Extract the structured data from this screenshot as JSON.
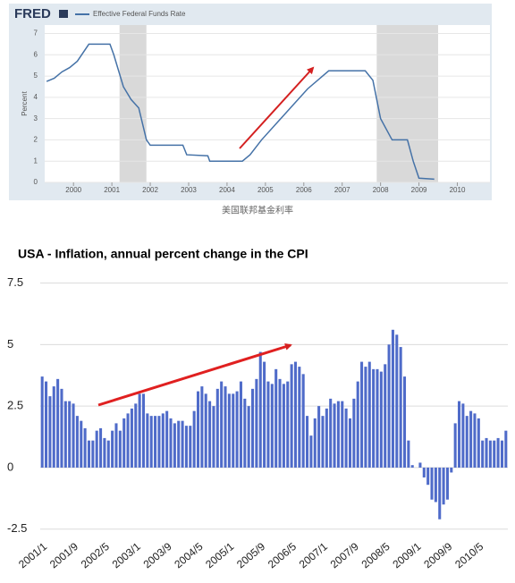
{
  "chart_data": [
    {
      "type": "line",
      "logo": "FRED",
      "legend": "Effective Federal Funds Rate",
      "y_label": "Percent",
      "caption": "美国联邦基金利率",
      "x": [
        1999.3,
        1999.5,
        1999.7,
        1999.9,
        2000.1,
        2000.4,
        2000.95,
        2001.05,
        2001.3,
        2001.5,
        2001.7,
        2001.9,
        2002.0,
        2002.85,
        2002.95,
        2003.5,
        2003.55,
        2004.4,
        2004.6,
        2004.9,
        2005.3,
        2005.7,
        2006.1,
        2006.65,
        2007.6,
        2007.8,
        2008.0,
        2008.3,
        2008.7,
        2008.85,
        2009.0,
        2009.4
      ],
      "series": [
        {
          "name": "Effective Federal Funds Rate",
          "color": "#4572a7",
          "values": [
            4.75,
            4.9,
            5.2,
            5.4,
            5.7,
            6.5,
            6.5,
            6.0,
            4.5,
            3.9,
            3.5,
            2.0,
            1.75,
            1.75,
            1.3,
            1.25,
            1.0,
            1.0,
            1.3,
            2.0,
            2.8,
            3.6,
            4.4,
            5.25,
            5.25,
            4.8,
            3.0,
            2.0,
            2.0,
            1.0,
            0.2,
            0.15
          ]
        }
      ],
      "shaded_ranges": [
        [
          2001.2,
          2001.9
        ],
        [
          2007.9,
          2009.5
        ]
      ],
      "xlim": [
        1999.25,
        2010.85
      ],
      "xticks": [
        2000,
        2001,
        2002,
        2003,
        2004,
        2005,
        2006,
        2007,
        2008,
        2009,
        2010
      ],
      "ylim": [
        0,
        7.4
      ],
      "yticks": [
        0,
        1,
        2,
        3,
        4,
        5,
        6,
        7
      ],
      "grid": true
    },
    {
      "type": "bar",
      "title": "USA - Inflation, annual percent change in the CPI",
      "categories": [
        "2001/1",
        null,
        null,
        null,
        null,
        null,
        null,
        null,
        "2001/9",
        null,
        null,
        null,
        null,
        null,
        null,
        null,
        "2002/5",
        null,
        null,
        null,
        null,
        null,
        null,
        null,
        "2003/1",
        null,
        null,
        null,
        null,
        null,
        null,
        null,
        "2003/9",
        null,
        null,
        null,
        null,
        null,
        null,
        null,
        "2004/5",
        null,
        null,
        null,
        null,
        null,
        null,
        null,
        "2005/1",
        null,
        null,
        null,
        null,
        null,
        null,
        null,
        "2005/9",
        null,
        null,
        null,
        null,
        null,
        null,
        null,
        "2006/5",
        null,
        null,
        null,
        null,
        null,
        null,
        null,
        "2007/1",
        null,
        null,
        null,
        null,
        null,
        null,
        null,
        "2007/9",
        null,
        null,
        null,
        null,
        null,
        null,
        null,
        "2008/5",
        null,
        null,
        null,
        null,
        null,
        null,
        null,
        "2009/1",
        null,
        null,
        null,
        null,
        null,
        null,
        null,
        "2009/9",
        null,
        null,
        null,
        null,
        null,
        null,
        null,
        "2010/5",
        null,
        null,
        null,
        null,
        null,
        null,
        null
      ],
      "values": [
        3.7,
        3.5,
        2.9,
        3.3,
        3.6,
        3.2,
        2.7,
        2.7,
        2.6,
        2.1,
        1.9,
        1.6,
        1.1,
        1.1,
        1.5,
        1.6,
        1.2,
        1.1,
        1.5,
        1.8,
        1.5,
        2.0,
        2.2,
        2.4,
        2.6,
        3.0,
        3.0,
        2.2,
        2.1,
        2.1,
        2.1,
        2.2,
        2.3,
        2.0,
        1.8,
        1.9,
        1.9,
        1.7,
        1.7,
        2.3,
        3.1,
        3.3,
        3.0,
        2.7,
        2.5,
        3.2,
        3.5,
        3.3,
        3.0,
        3.0,
        3.1,
        3.5,
        2.8,
        2.5,
        3.2,
        3.6,
        4.7,
        4.3,
        3.5,
        3.4,
        4.0,
        3.6,
        3.4,
        3.5,
        4.2,
        4.3,
        4.1,
        3.8,
        2.1,
        1.3,
        2.0,
        2.5,
        2.1,
        2.4,
        2.8,
        2.6,
        2.7,
        2.7,
        2.4,
        2.0,
        2.8,
        3.5,
        4.3,
        4.1,
        4.3,
        4.0,
        4.0,
        3.9,
        4.2,
        5.0,
        5.6,
        5.4,
        4.9,
        3.7,
        1.1,
        0.1,
        0.0,
        0.2,
        -0.4,
        -0.7,
        -1.3,
        -1.4,
        -2.1,
        -1.5,
        -1.3,
        -0.2,
        1.8,
        2.7,
        2.6,
        2.1,
        2.3,
        2.2,
        2.0,
        1.1,
        1.2,
        1.1,
        1.1,
        1.2,
        1.1,
        1.5
      ],
      "color": "#4f6bc9",
      "ylim": [
        -2.8,
        8.1
      ],
      "yticks": [
        -2.5,
        0,
        2.5,
        5,
        7.5
      ],
      "grid": true
    }
  ]
}
